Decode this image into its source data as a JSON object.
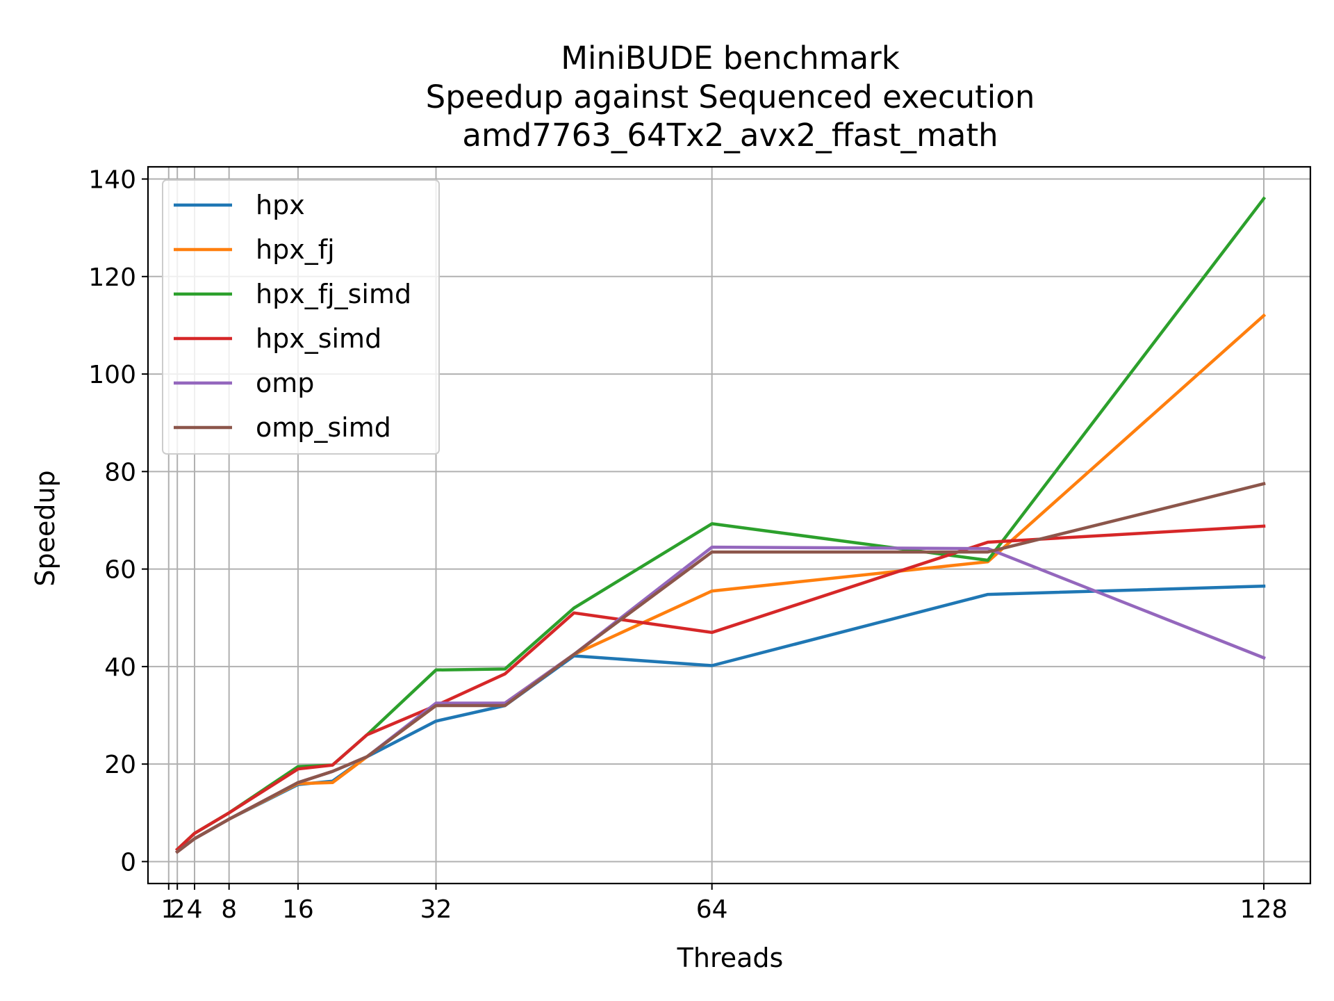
{
  "chart_data": {
    "type": "line",
    "title_lines": [
      "MiniBUDE benchmark",
      "Speedup against Sequenced execution",
      "amd7763_64Tx2_avx2_ffast_math"
    ],
    "xlabel": "Threads",
    "ylabel": "Speedup",
    "xlim": [
      -1.4,
      133.4
    ],
    "ylim": [
      -4.5,
      142.5
    ],
    "xticks": [
      1,
      2,
      4,
      8,
      16,
      32,
      64,
      128
    ],
    "xtick_labels": [
      "1",
      "2",
      "4",
      "8",
      "16",
      "32",
      "64",
      "128"
    ],
    "x_vlines": [
      1,
      2,
      4,
      8,
      16,
      32,
      64,
      128
    ],
    "yticks": [
      0,
      20,
      40,
      60,
      80,
      100,
      120,
      140
    ],
    "ytick_labels": [
      "0",
      "20",
      "40",
      "60",
      "80",
      "100",
      "120",
      "140"
    ],
    "grid": true,
    "legend_position": "upper-left",
    "series": [
      {
        "name": "hpx",
        "color": "#1f77b4",
        "x": [
          2,
          4,
          8,
          16,
          20,
          24,
          32,
          40,
          48,
          64,
          96,
          128
        ],
        "y": [
          2.0,
          4.7,
          8.7,
          15.8,
          16.5,
          21.5,
          28.8,
          32.0,
          42.2,
          40.2,
          54.8,
          56.5
        ]
      },
      {
        "name": "hpx_fj",
        "color": "#ff7f0e",
        "x": [
          2,
          4,
          8,
          16,
          20,
          24,
          32,
          40,
          48,
          64,
          96,
          128
        ],
        "y": [
          2.0,
          4.7,
          8.7,
          16.0,
          16.2,
          21.5,
          32.0,
          32.5,
          42.5,
          55.5,
          61.5,
          112.0
        ]
      },
      {
        "name": "hpx_fj_simd",
        "color": "#2ca02c",
        "x": [
          2,
          4,
          8,
          16,
          20,
          24,
          32,
          40,
          48,
          64,
          96,
          128
        ],
        "y": [
          2.5,
          5.8,
          10.0,
          19.5,
          19.8,
          26.0,
          39.3,
          39.5,
          52.0,
          69.3,
          61.8,
          136.0
        ]
      },
      {
        "name": "hpx_simd",
        "color": "#d62728",
        "x": [
          2,
          4,
          8,
          16,
          20,
          24,
          32,
          40,
          48,
          64,
          96,
          128
        ],
        "y": [
          2.5,
          5.8,
          10.0,
          19.0,
          19.8,
          26.0,
          32.0,
          38.5,
          51.0,
          47.0,
          65.5,
          68.8
        ]
      },
      {
        "name": "omp",
        "color": "#9467bd",
        "x": [
          2,
          4,
          8,
          16,
          20,
          24,
          32,
          40,
          48,
          64,
          96,
          128
        ],
        "y": [
          2.0,
          4.7,
          8.7,
          16.2,
          18.5,
          21.5,
          32.5,
          32.5,
          42.5,
          64.5,
          64.2,
          41.8
        ]
      },
      {
        "name": "omp_simd",
        "color": "#8c564b",
        "x": [
          2,
          4,
          8,
          16,
          20,
          24,
          32,
          40,
          48,
          64,
          96,
          128
        ],
        "y": [
          2.0,
          4.7,
          8.7,
          16.2,
          18.5,
          21.5,
          32.0,
          32.0,
          42.5,
          63.5,
          63.5,
          77.5
        ]
      }
    ]
  }
}
